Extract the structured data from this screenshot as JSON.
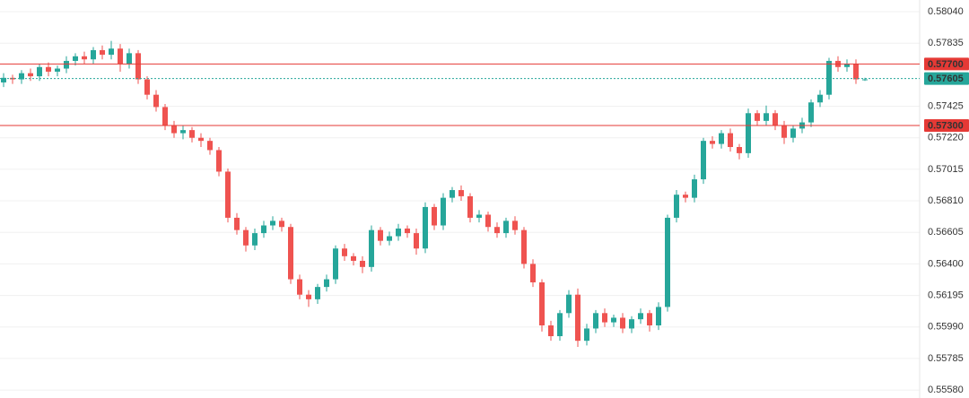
{
  "chart_data": {
    "type": "candlestick",
    "open": [
      0.5758,
      0.5761,
      0.576,
      0.5764,
      0.5762,
      0.5768,
      0.5765,
      0.5767,
      0.5772,
      0.5775,
      0.5773,
      0.5779,
      0.5776,
      0.578,
      0.577,
      0.5777,
      0.576,
      0.575,
      0.5742,
      0.573,
      0.5725,
      0.5727,
      0.5722,
      0.572,
      0.5714,
      0.57,
      0.567,
      0.5662,
      0.5652,
      0.566,
      0.5665,
      0.5668,
      0.5664,
      0.563,
      0.562,
      0.5617,
      0.5625,
      0.563,
      0.565,
      0.5645,
      0.5642,
      0.5638,
      0.5662,
      0.5655,
      0.5658,
      0.5663,
      0.566,
      0.565,
      0.5677,
      0.5665,
      0.5683,
      0.5688,
      0.5684,
      0.567,
      0.5672,
      0.5664,
      0.566,
      0.5668,
      0.5662,
      0.564,
      0.5628,
      0.56,
      0.5593,
      0.5608,
      0.562,
      0.559,
      0.5598,
      0.5608,
      0.5602,
      0.5605,
      0.5598,
      0.5604,
      0.5608,
      0.56,
      0.5612,
      0.567,
      0.5685,
      0.5683,
      0.5695,
      0.572,
      0.5718,
      0.5725,
      0.5716,
      0.5712,
      0.5738,
      0.5733,
      0.5738,
      0.573,
      0.5722,
      0.5728,
      0.5732,
      0.5745,
      0.575,
      0.5772,
      0.5768,
      0.577,
      0.576
    ],
    "high": [
      0.5764,
      0.5763,
      0.5766,
      0.5767,
      0.577,
      0.5771,
      0.5769,
      0.5775,
      0.5777,
      0.5778,
      0.5781,
      0.5782,
      0.5785,
      0.5783,
      0.578,
      0.5779,
      0.5762,
      0.5753,
      0.5744,
      0.5733,
      0.573,
      0.5729,
      0.5725,
      0.5722,
      0.5716,
      0.5702,
      0.5673,
      0.5664,
      0.5663,
      0.5668,
      0.5671,
      0.567,
      0.5666,
      0.5633,
      0.5623,
      0.5627,
      0.5633,
      0.5652,
      0.5653,
      0.5647,
      0.5645,
      0.5665,
      0.5664,
      0.5661,
      0.5666,
      0.5665,
      0.5663,
      0.568,
      0.5679,
      0.5686,
      0.569,
      0.5691,
      0.5686,
      0.5675,
      0.5674,
      0.5667,
      0.567,
      0.5671,
      0.5664,
      0.5643,
      0.563,
      0.5603,
      0.561,
      0.5623,
      0.5624,
      0.5601,
      0.561,
      0.5611,
      0.5607,
      0.5608,
      0.5606,
      0.5611,
      0.561,
      0.5615,
      0.5672,
      0.5688,
      0.5687,
      0.5698,
      0.5722,
      0.5723,
      0.5727,
      0.5728,
      0.5718,
      0.5741,
      0.574,
      0.5743,
      0.574,
      0.5733,
      0.573,
      0.5735,
      0.5747,
      0.5753,
      0.5774,
      0.5775,
      0.5773,
      0.5773,
      0.5761
    ],
    "low": [
      0.5755,
      0.5757,
      0.5757,
      0.5759,
      0.5759,
      0.5762,
      0.5762,
      0.5764,
      0.5769,
      0.577,
      0.577,
      0.5773,
      0.5773,
      0.5765,
      0.5767,
      0.5757,
      0.5747,
      0.5739,
      0.5727,
      0.5722,
      0.5721,
      0.5719,
      0.5716,
      0.5711,
      0.5697,
      0.5667,
      0.5659,
      0.5648,
      0.5649,
      0.5657,
      0.5662,
      0.5661,
      0.5627,
      0.5617,
      0.5612,
      0.5614,
      0.5622,
      0.5627,
      0.5642,
      0.5639,
      0.5634,
      0.5635,
      0.5652,
      0.5652,
      0.5655,
      0.5657,
      0.5646,
      0.5647,
      0.5662,
      0.5662,
      0.568,
      0.5681,
      0.5667,
      0.5667,
      0.5661,
      0.5657,
      0.5657,
      0.5659,
      0.5637,
      0.5625,
      0.5596,
      0.559,
      0.559,
      0.5605,
      0.5586,
      0.5587,
      0.5595,
      0.5599,
      0.5599,
      0.5595,
      0.5595,
      0.5601,
      0.5596,
      0.5597,
      0.5609,
      0.5667,
      0.568,
      0.568,
      0.5692,
      0.5715,
      0.5715,
      0.5713,
      0.5708,
      0.5709,
      0.573,
      0.573,
      0.5727,
      0.5718,
      0.5719,
      0.5725,
      0.5729,
      0.5742,
      0.5747,
      0.5765,
      0.5765,
      0.5757,
      0.5759
    ],
    "close": [
      0.5761,
      0.576,
      0.5764,
      0.5762,
      0.5768,
      0.5765,
      0.5767,
      0.5772,
      0.5775,
      0.5773,
      0.5779,
      0.5776,
      0.578,
      0.577,
      0.5777,
      0.576,
      0.575,
      0.5742,
      0.573,
      0.5725,
      0.5727,
      0.5722,
      0.572,
      0.5714,
      0.57,
      0.567,
      0.5662,
      0.5652,
      0.566,
      0.5665,
      0.5668,
      0.5664,
      0.563,
      0.562,
      0.5617,
      0.5625,
      0.563,
      0.565,
      0.5645,
      0.5642,
      0.5638,
      0.5662,
      0.5655,
      0.5658,
      0.5663,
      0.566,
      0.565,
      0.5677,
      0.5665,
      0.5683,
      0.5688,
      0.5684,
      0.567,
      0.5672,
      0.5664,
      0.566,
      0.5668,
      0.5662,
      0.564,
      0.5628,
      0.56,
      0.5593,
      0.5608,
      0.562,
      0.559,
      0.5598,
      0.5608,
      0.5602,
      0.5605,
      0.5598,
      0.5604,
      0.5608,
      0.56,
      0.5612,
      0.567,
      0.5685,
      0.5683,
      0.5695,
      0.572,
      0.5718,
      0.5725,
      0.5716,
      0.5712,
      0.5738,
      0.5733,
      0.5738,
      0.573,
      0.5722,
      0.5728,
      0.5732,
      0.5745,
      0.575,
      0.5772,
      0.5768,
      0.577,
      0.576,
      0.576
    ],
    "up_color": "#26a69a",
    "down_color": "#ef5350",
    "ylim": [
      0.55528,
      0.58116
    ],
    "yticks": [
      {
        "value": 0.5804,
        "label": "0.58040"
      },
      {
        "value": 0.57835,
        "label": "0.57835"
      },
      {
        "value": 0.57425,
        "label": "0.57425"
      },
      {
        "value": 0.5722,
        "label": "0.57220"
      },
      {
        "value": 0.57015,
        "label": "0.57015"
      },
      {
        "value": 0.5681,
        "label": "0.56810"
      },
      {
        "value": 0.56605,
        "label": "0.56605"
      },
      {
        "value": 0.564,
        "label": "0.56400"
      },
      {
        "value": 0.56195,
        "label": "0.56195"
      },
      {
        "value": 0.5599,
        "label": "0.55990"
      },
      {
        "value": 0.55785,
        "label": "0.55785"
      },
      {
        "value": 0.5558,
        "label": "0.55580"
      }
    ],
    "grid": true,
    "levels": [
      {
        "value": 0.577,
        "label": "0.57700",
        "color": "#e53935"
      },
      {
        "value": 0.573,
        "label": "0.57300",
        "color": "#e53935"
      }
    ],
    "last_price": {
      "value": 0.57605,
      "label": "0.57605",
      "color": "#26a69a"
    }
  }
}
